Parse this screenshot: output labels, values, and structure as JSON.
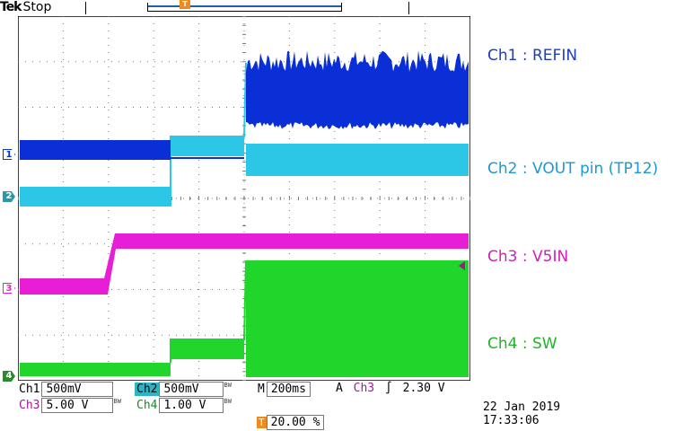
{
  "header": {
    "brand": "Tek",
    "run_state": "Stop",
    "trigger_marker": "T"
  },
  "colors": {
    "ch1": "#0a2fd6",
    "ch2": "#2cc6e6",
    "ch3": "#e81ed6",
    "ch4": "#21d62a",
    "trigger": "#f08a1c",
    "grid": "#7a7a7a"
  },
  "markers": {
    "ch1": "1",
    "ch2": "2",
    "ch3": "3",
    "ch4": "4"
  },
  "legend": {
    "ch1": "Ch1 : REFIN",
    "ch2": "Ch2 : VOUT pin (TP12)",
    "ch3": "Ch3 : V5IN",
    "ch4": "Ch4 : SW"
  },
  "settings": {
    "ch1_label": "Ch1",
    "ch1_scale": "500mV",
    "ch2_label": "Ch2",
    "ch2_scale": "500mV",
    "ch3_label": "Ch3",
    "ch3_scale": "5.00 V",
    "ch4_label": "Ch4",
    "ch4_scale": "1.00 V",
    "bw_mark": "BW",
    "timebase_label": "M",
    "timebase": "200ms",
    "trigger_mode": "A",
    "trigger_source": "Ch3",
    "trigger_slope": "∫",
    "trigger_level": "2.30 V",
    "trigger_position_marker": "T",
    "trigger_position": "20.00 %",
    "date": "22 Jan  2019",
    "time": "17:33:06"
  }
}
